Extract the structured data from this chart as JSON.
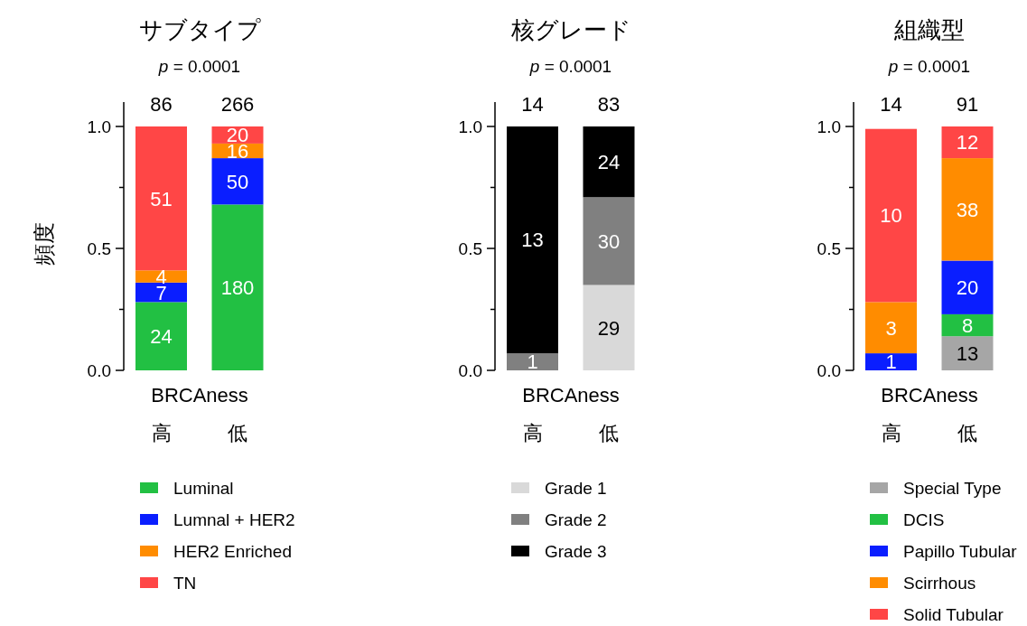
{
  "chart_data": [
    {
      "type": "bar",
      "stacked": true,
      "title": "サブタイプ",
      "subtitle": "*p* = 0.0001",
      "xlabel": "BRCAness",
      "ylabel": "頻度",
      "categories": [
        "高",
        "低"
      ],
      "ylim": [
        0,
        1.1
      ],
      "yticks": [
        {
          "value": 0,
          "label": "0.0"
        },
        {
          "value": 0.25,
          "label": null
        },
        {
          "value": 0.5,
          "label": "0.5"
        },
        {
          "value": 0.75,
          "label": null
        },
        {
          "value": 1,
          "label": "1.0"
        }
      ],
      "legend": "bottom",
      "series": [
        {
          "name": "Luminal",
          "color": "#22c043",
          "values": [
            0.28,
            0.68
          ]
        },
        {
          "name": "Lumnal + HER2",
          "color": "#0a1eff",
          "values": [
            0.08,
            0.19
          ]
        },
        {
          "name": "HER2 Enriched",
          "color": "#ff8c00",
          "values": [
            0.05,
            0.06
          ]
        },
        {
          "name": "TN",
          "color": "#ff4646",
          "values": [
            0.59,
            0.07
          ]
        }
      ],
      "annotations": [
        "86",
        "266",
        "24",
        "180",
        "7",
        "50",
        "4",
        "16",
        "51",
        "20"
      ]
    },
    {
      "type": "bar",
      "stacked": true,
      "title": "核グレード",
      "subtitle": "*p* = 0.0001",
      "xlabel": "BRCAness",
      "categories": [
        "高",
        "低"
      ],
      "ylim": [
        0,
        1.1
      ],
      "yticks": [
        {
          "value": 0,
          "label": "0.0"
        },
        {
          "value": 0.25,
          "label": null
        },
        {
          "value": 0.5,
          "label": "0.5"
        },
        {
          "value": 0.75,
          "label": null
        },
        {
          "value": 1,
          "label": "1.0"
        }
      ],
      "legend": "bottom",
      "series": [
        {
          "name": "Grade 1",
          "color": "#d9d9d9",
          "values": [
            0,
            0.35
          ]
        },
        {
          "name": "Grade 2",
          "color": "#808080",
          "values": [
            0.07,
            0.36
          ]
        },
        {
          "name": "Grade 3",
          "color": "#000000",
          "values": [
            0.93,
            0.29
          ]
        }
      ],
      "annotations": [
        "14",
        "83",
        "29",
        "1",
        "30",
        "13",
        "24"
      ]
    },
    {
      "type": "bar",
      "stacked": true,
      "title": "組織型",
      "subtitle": "*p* = 0.0001",
      "xlabel": "BRCAness",
      "categories": [
        "高",
        "低"
      ],
      "ylim": [
        0,
        1.1
      ],
      "yticks": [
        {
          "value": 0,
          "label": "0.0"
        },
        {
          "value": 0.25,
          "label": null
        },
        {
          "value": 0.5,
          "label": "0.5"
        },
        {
          "value": 0.75,
          "label": null
        },
        {
          "value": 1,
          "label": "1.0"
        }
      ],
      "legend": "bottom",
      "series": [
        {
          "name": "Special Type",
          "color": "#a6a6a6",
          "values": [
            0,
            0.14
          ]
        },
        {
          "name": "DCIS",
          "color": "#22c043",
          "values": [
            0,
            0.09
          ]
        },
        {
          "name": "Papillo Tubular",
          "color": "#0a1eff",
          "values": [
            0.07,
            0.22
          ]
        },
        {
          "name": "Scirrhous",
          "color": "#ff8c00",
          "values": [
            0.21,
            0.42
          ]
        },
        {
          "name": "Solid Tubular",
          "color": "#ff4646",
          "values": [
            0.71,
            0.13
          ]
        }
      ],
      "annotations": [
        "14",
        "91",
        "13",
        "8",
        "1",
        "20",
        "3",
        "38",
        "10",
        "12"
      ]
    }
  ]
}
